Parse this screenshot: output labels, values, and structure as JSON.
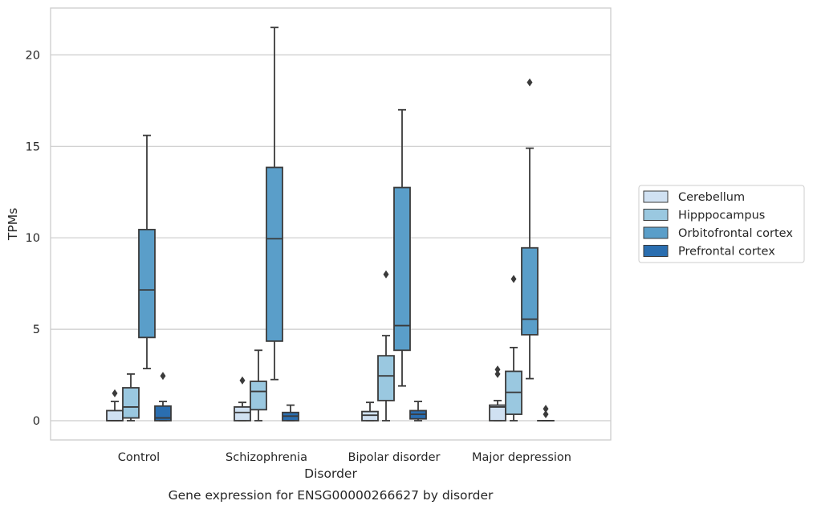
{
  "chart_data": {
    "type": "box",
    "xlabel": "Disorder",
    "ylabel": "TPMs",
    "caption": "Gene expression for ENSG00000266627 by disorder",
    "ylim": [
      -1.05,
      22.6
    ],
    "yticks": [
      0,
      5,
      10,
      15,
      20
    ],
    "grid": "horizontal",
    "legend_position": "right",
    "categories": [
      "Control",
      "Schizophrenia",
      "Bipolar disorder",
      "Major depression"
    ],
    "series": [
      {
        "name": "Cerebellum",
        "color": "#d0e1f2",
        "boxes": [
          {
            "whisker_low": 0.0,
            "q1": 0.0,
            "median": 0.0,
            "q3": 0.55,
            "whisker_high": 1.05,
            "outliers": [
              1.5
            ]
          },
          {
            "whisker_low": 0.0,
            "q1": 0.0,
            "median": 0.45,
            "q3": 0.75,
            "whisker_high": 1.0,
            "outliers": [
              2.2
            ]
          },
          {
            "whisker_low": 0.0,
            "q1": 0.0,
            "median": 0.3,
            "q3": 0.5,
            "whisker_high": 1.0,
            "outliers": []
          },
          {
            "whisker_low": 0.0,
            "q1": 0.0,
            "median": 0.75,
            "q3": 0.85,
            "whisker_high": 1.1,
            "outliers": [
              2.55,
              2.8
            ]
          }
        ]
      },
      {
        "name": "Hipppocampus",
        "color": "#9ac8e0",
        "boxes": [
          {
            "whisker_low": 0.0,
            "q1": 0.15,
            "median": 0.75,
            "q3": 1.8,
            "whisker_high": 2.55,
            "outliers": []
          },
          {
            "whisker_low": 0.0,
            "q1": 0.6,
            "median": 1.6,
            "q3": 2.15,
            "whisker_high": 3.85,
            "outliers": []
          },
          {
            "whisker_low": 0.0,
            "q1": 1.1,
            "median": 2.45,
            "q3": 3.55,
            "whisker_high": 4.65,
            "outliers": [
              8.0
            ]
          },
          {
            "whisker_low": 0.0,
            "q1": 0.35,
            "median": 1.55,
            "q3": 2.7,
            "whisker_high": 4.0,
            "outliers": [
              7.75
            ]
          }
        ]
      },
      {
        "name": "Orbitofrontal cortex",
        "color": "#5a9ec9",
        "boxes": [
          {
            "whisker_low": 2.85,
            "q1": 4.55,
            "median": 7.15,
            "q3": 10.45,
            "whisker_high": 15.6,
            "outliers": []
          },
          {
            "whisker_low": 2.25,
            "q1": 4.35,
            "median": 9.95,
            "q3": 13.85,
            "whisker_high": 21.5,
            "outliers": []
          },
          {
            "whisker_low": 1.9,
            "q1": 3.85,
            "median": 5.2,
            "q3": 12.75,
            "whisker_high": 17.0,
            "outliers": []
          },
          {
            "whisker_low": 2.3,
            "q1": 4.7,
            "median": 5.55,
            "q3": 9.45,
            "whisker_high": 14.9,
            "outliers": [
              18.5
            ]
          }
        ]
      },
      {
        "name": "Prefrontal cortex",
        "color": "#2a6eb0",
        "boxes": [
          {
            "whisker_low": 0.0,
            "q1": 0.0,
            "median": 0.15,
            "q3": 0.8,
            "whisker_high": 1.05,
            "outliers": [
              2.45
            ]
          },
          {
            "whisker_low": 0.0,
            "q1": 0.0,
            "median": 0.25,
            "q3": 0.45,
            "whisker_high": 0.85,
            "outliers": []
          },
          {
            "whisker_low": 0.0,
            "q1": 0.1,
            "median": 0.35,
            "q3": 0.55,
            "whisker_high": 1.05,
            "outliers": []
          },
          {
            "whisker_low": 0.0,
            "q1": 0.0,
            "median": 0.0,
            "q3": 0.0,
            "whisker_high": 0.0,
            "outliers": [
              0.35,
              0.65
            ]
          }
        ]
      }
    ]
  }
}
